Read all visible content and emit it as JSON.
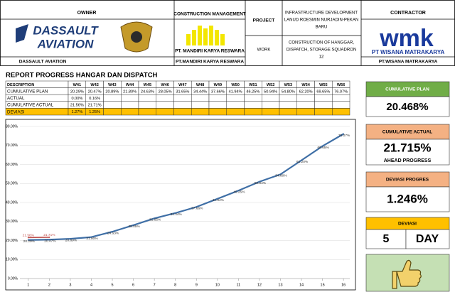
{
  "header": {
    "owner": {
      "label": "OWNER",
      "logo_lines": [
        "DASSAULT",
        "AVIATION"
      ],
      "name": "DASSAULT AVIATION"
    },
    "construction_management": {
      "label": "CONSTRUCTION MANAGEMENT",
      "logo_text": "PT. MANDIRI KARYA RESWARA",
      "name": "PT.MANDIRI KARYA RESWARA"
    },
    "project": {
      "label": "PROJECT",
      "lines": [
        "INFRASTRUCTURE DEVELOPMENT",
        "LANUD ROESMIN NURJADIN-PEKAN",
        "BARU"
      ]
    },
    "work": {
      "label": "WORK",
      "lines": [
        "CONSTRUCTION OF HANGGAR,",
        "DISPATCH, STORAGE SQUADRON",
        "12"
      ]
    },
    "contractor": {
      "label": "CONTRACTOR",
      "logo_text": "wmk",
      "logo_caption": "PT WISANA MATRAKARYA",
      "name": "PT.WISANA MATRAKARYA"
    }
  },
  "report_title": "REPORT PROGRESS HANGAR DAN DISPATCH",
  "table": {
    "columns": [
      "DESCRIPTION",
      "W41",
      "W42",
      "W43",
      "W44",
      "W45",
      "W46",
      "W47",
      "W48",
      "W49",
      "W50",
      "W51",
      "W52",
      "W53",
      "W54",
      "W55",
      "W56"
    ],
    "rows": [
      [
        "CUMULATIVE PLAN",
        "20.29%",
        "20.47%",
        "20.89%",
        "21.80%",
        "24.63%",
        "28.05%",
        "31.65%",
        "34.44%",
        "37.66%",
        "41.94%",
        "46.25%",
        "50.94%",
        "54.80%",
        "62.20%",
        "69.65%",
        "76.07%"
      ],
      [
        "ACTUAL",
        "0.00%",
        "0.16%"
      ],
      [
        "CUMULATIVE ACTUAL",
        "21.56%",
        "21.71%"
      ],
      [
        "DEVIASI",
        "1.27%",
        "1.25%"
      ]
    ]
  },
  "kpis": {
    "cumulative_plan": {
      "label": "CUMULATIVE PLAN",
      "value": "20.468%"
    },
    "cumulative_actual": {
      "label": "CUMULATIVE ACTUAL",
      "value": "21.715%",
      "note": "AHEAD PROGRESS"
    },
    "deviasi_progres": {
      "label": "DEVIASI PROGRES",
      "value": "1.246%"
    },
    "deviasi": {
      "label": "DEVIASI",
      "value": "5",
      "unit": "DAY"
    }
  },
  "chart_data": {
    "type": "line",
    "x": [
      1,
      2,
      3,
      4,
      5,
      6,
      7,
      8,
      9,
      10,
      11,
      12,
      13,
      14,
      15,
      16
    ],
    "xlim": [
      0.6,
      16.3
    ],
    "xticks": [
      1,
      2,
      3,
      4,
      5,
      6,
      7,
      8,
      9,
      10,
      11,
      12,
      13,
      14,
      15,
      16
    ],
    "ylim": [
      0,
      80
    ],
    "yticks": [
      {
        "value": 0,
        "label": "0.00%"
      },
      {
        "value": 10,
        "label": "10.00%"
      },
      {
        "value": 20,
        "label": "20.00%"
      },
      {
        "value": 30,
        "label": "30.00%"
      },
      {
        "value": 40,
        "label": "40.00%"
      },
      {
        "value": 50,
        "label": "50.00%"
      },
      {
        "value": 60,
        "label": "60.00%"
      },
      {
        "value": 70,
        "label": "70.00%"
      },
      {
        "value": 80,
        "label": "80.00%"
      }
    ],
    "grid": true,
    "series": [
      {
        "color": "#3f6fa6",
        "values": [
          20.29,
          20.47,
          20.89,
          21.8,
          24.63,
          28.05,
          31.65,
          34.44,
          37.66,
          41.94,
          46.25,
          50.94,
          54.8,
          62.2,
          69.65,
          76.07
        ],
        "value_labels": [
          "20.29%",
          "20.47%",
          "20.89%",
          "21.80%",
          "24.63%",
          "28.05%",
          "31.65%",
          "34.44%",
          "37.66%",
          "41.94%",
          "46.25%",
          "50.94%",
          "54.80%",
          "62.20%",
          "69.65%",
          "76.07%"
        ]
      },
      {
        "color": "#c0504d",
        "values": [
          21.56,
          21.71,
          null,
          null,
          null,
          null,
          null,
          null,
          null,
          null,
          null,
          null,
          null,
          null,
          null,
          null
        ],
        "value_labels": [
          "21.56%",
          "21.71%",
          null,
          null,
          null,
          null,
          null,
          null,
          null,
          null,
          null,
          null,
          null,
          null,
          null,
          null
        ]
      }
    ]
  }
}
